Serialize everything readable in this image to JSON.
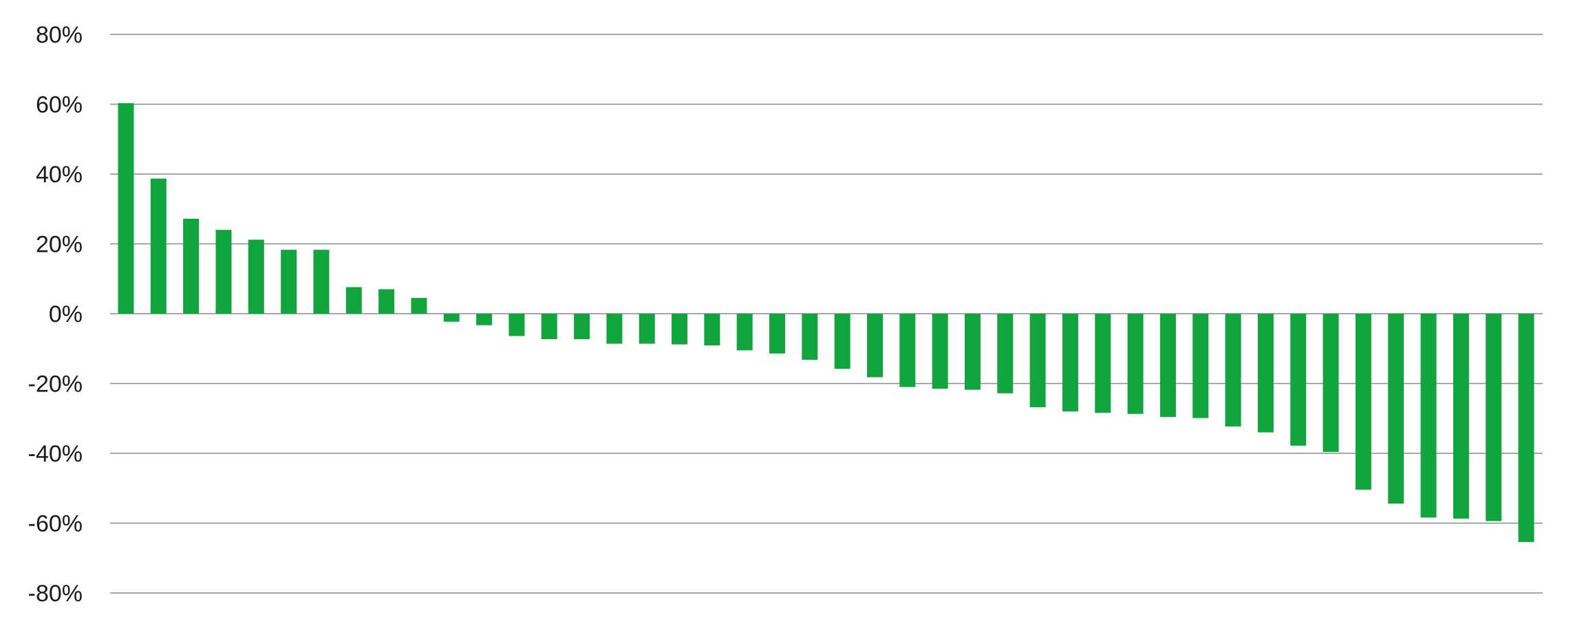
{
  "chart_data": {
    "type": "bar",
    "title": "",
    "xlabel": "",
    "ylabel": "",
    "ylim": [
      -80,
      80
    ],
    "y_ticks": [
      80,
      60,
      40,
      20,
      0,
      -20,
      -40,
      -60,
      -80
    ],
    "y_tick_labels": [
      "80%",
      "60%",
      "40%",
      "20%",
      "0%",
      "-20%",
      "-40%",
      "-60%",
      "-80%"
    ],
    "grid": true,
    "bar_color": "#13a53d",
    "grid_color": "#8c8c8c",
    "values": [
      60.3,
      38.7,
      27.2,
      24.0,
      21.2,
      18.3,
      18.3,
      7.6,
      7.0,
      4.5,
      -2.3,
      -3.3,
      -6.4,
      -7.3,
      -7.3,
      -8.6,
      -8.6,
      -8.8,
      -9.1,
      -10.5,
      -11.4,
      -13.2,
      -15.8,
      -18.2,
      -21.0,
      -21.5,
      -21.8,
      -22.8,
      -26.8,
      -28.0,
      -28.4,
      -28.7,
      -29.6,
      -29.9,
      -32.3,
      -34.0,
      -37.8,
      -39.6,
      -50.4,
      -54.4,
      -58.4,
      -58.7,
      -59.4,
      -65.4
    ]
  }
}
